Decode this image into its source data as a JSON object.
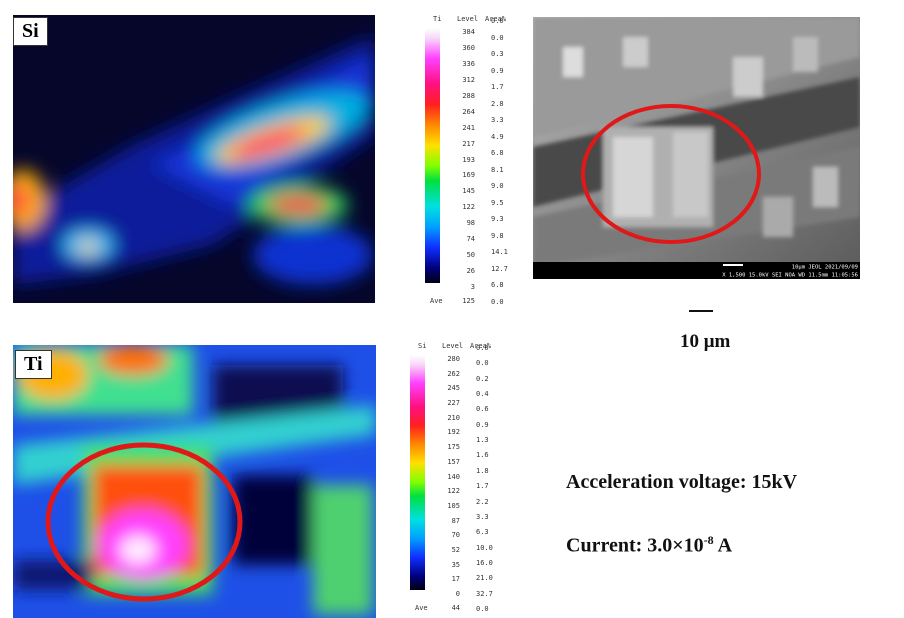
{
  "maps": [
    {
      "label": "Si"
    },
    {
      "label": "Ti"
    }
  ],
  "colorbars": [
    {
      "element": "Ti",
      "level_header": "Level",
      "area_header": "Area%",
      "levels": [
        "384",
        "360",
        "336",
        "312",
        "288",
        "264",
        "241",
        "217",
        "193",
        "169",
        "145",
        "122",
        "98",
        "74",
        "50",
        "26",
        "3"
      ],
      "areas": [
        "0.0",
        "0.0",
        "0.3",
        "0.9",
        "1.7",
        "2.8",
        "3.3",
        "4.9",
        "6.8",
        "8.1",
        "9.0",
        "9.5",
        "9.3",
        "9.8",
        "14.1",
        "12.7",
        "6.8",
        "0.0"
      ],
      "ave_label": "Ave",
      "ave": "125"
    },
    {
      "element": "Si",
      "level_header": "Level",
      "area_header": "Area%",
      "levels": [
        "280",
        "262",
        "245",
        "227",
        "210",
        "192",
        "175",
        "157",
        "140",
        "122",
        "105",
        "87",
        "70",
        "52",
        "35",
        "17",
        "0"
      ],
      "areas": [
        "0.0",
        "0.0",
        "0.2",
        "0.4",
        "0.6",
        "0.9",
        "1.3",
        "1.6",
        "1.8",
        "1.7",
        "2.2",
        "3.3",
        "6.3",
        "10.0",
        "16.0",
        "21.0",
        "32.7",
        "0.0"
      ],
      "ave_label": "Ave",
      "ave": "44"
    }
  ],
  "sem": {
    "info_top": "10µm  JEOL    2021/09/09",
    "info_bottom": "X 1,500   15.0kV SEI   NOA   WD 11.5mm 11:05:56"
  },
  "scale_label": "10 μm",
  "conditions": {
    "voltage": "Acceleration voltage: 15kV",
    "current_prefix": "Current: 3.0×10",
    "current_exponent": "-8",
    "current_suffix": " A"
  }
}
